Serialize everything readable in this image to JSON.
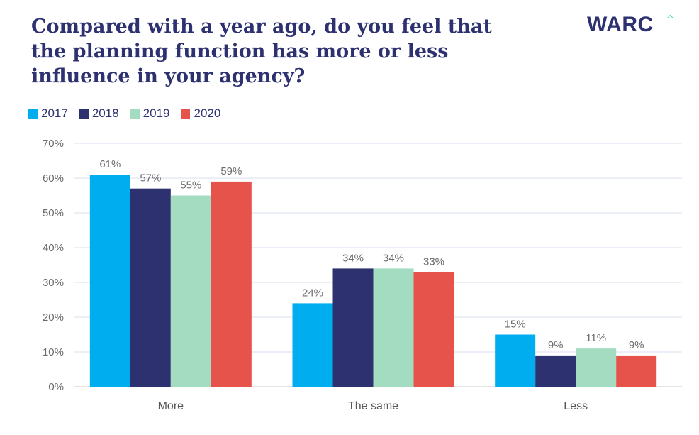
{
  "title": "Compared with a year ago, do you feel that the planning function has more or less influence in your agency?",
  "logo_text": "WARC",
  "logo_caret": "^",
  "colors": {
    "title": "#2d3170",
    "grid": "#dadcf0",
    "tick_text": "#6b6b6b"
  },
  "chart_data": {
    "type": "bar",
    "categories": [
      "More",
      "The same",
      "Less"
    ],
    "series": [
      {
        "name": "2017",
        "color": "#00aeef",
        "values": [
          61,
          24,
          15
        ],
        "labels": [
          "61%",
          "24%",
          "15%"
        ]
      },
      {
        "name": "2018",
        "color": "#2d3170",
        "values": [
          57,
          34,
          9
        ],
        "labels": [
          "57%",
          "34%",
          "9%"
        ]
      },
      {
        "name": "2019",
        "color": "#a3dcc0",
        "values": [
          55,
          34,
          11
        ],
        "labels": [
          "55%",
          "34%",
          "11%"
        ]
      },
      {
        "name": "2020",
        "color": "#e5534b",
        "values": [
          59,
          33,
          9
        ],
        "labels": [
          "59%",
          "33%",
          "9%"
        ]
      }
    ],
    "yticks": [
      "0%",
      "10%",
      "20%",
      "30%",
      "40%",
      "50%",
      "60%",
      "70%"
    ],
    "ylim": [
      0,
      70
    ],
    "grid": true,
    "legend_position": "top-left",
    "xlabel": "",
    "ylabel": ""
  }
}
